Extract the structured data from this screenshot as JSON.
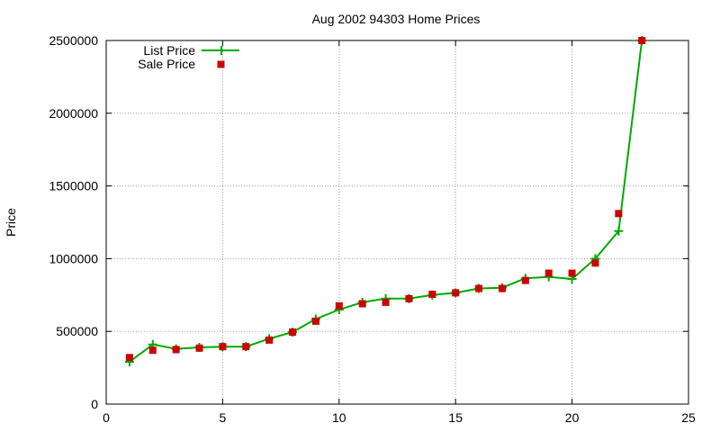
{
  "chart_data": {
    "type": "line",
    "title": "Aug 2002 94303 Home Prices",
    "xlabel": "",
    "ylabel": "Price",
    "xlim": [
      0,
      25
    ],
    "ylim": [
      0,
      2500000
    ],
    "xticks": [
      0,
      5,
      10,
      15,
      20,
      25
    ],
    "yticks": [
      0,
      500000,
      1000000,
      1500000,
      2000000,
      2500000
    ],
    "grid": true,
    "legend_position": "top-left",
    "series": [
      {
        "name": "List Price",
        "style": "line-with-plus-markers",
        "color": "#00aa00",
        "x": [
          1,
          2,
          3,
          4,
          5,
          6,
          7,
          8,
          9,
          10,
          11,
          12,
          13,
          14,
          15,
          16,
          17,
          18,
          19,
          20,
          21,
          22,
          23
        ],
        "y": [
          290000,
          410000,
          380000,
          390000,
          395000,
          395000,
          450000,
          495000,
          585000,
          650000,
          700000,
          725000,
          725000,
          750000,
          765000,
          795000,
          800000,
          865000,
          875000,
          860000,
          1000000,
          1190000,
          2500000
        ]
      },
      {
        "name": "Sale Price",
        "style": "square-markers",
        "color": "#cc0000",
        "x": [
          1,
          2,
          3,
          4,
          5,
          6,
          7,
          8,
          9,
          10,
          11,
          12,
          13,
          14,
          15,
          16,
          17,
          18,
          19,
          20,
          21,
          22,
          23
        ],
        "y": [
          320000,
          370000,
          375000,
          385000,
          395000,
          395000,
          440000,
          495000,
          570000,
          675000,
          690000,
          700000,
          725000,
          755000,
          765000,
          795000,
          795000,
          850000,
          900000,
          900000,
          970000,
          1310000,
          2500000
        ]
      }
    ]
  }
}
